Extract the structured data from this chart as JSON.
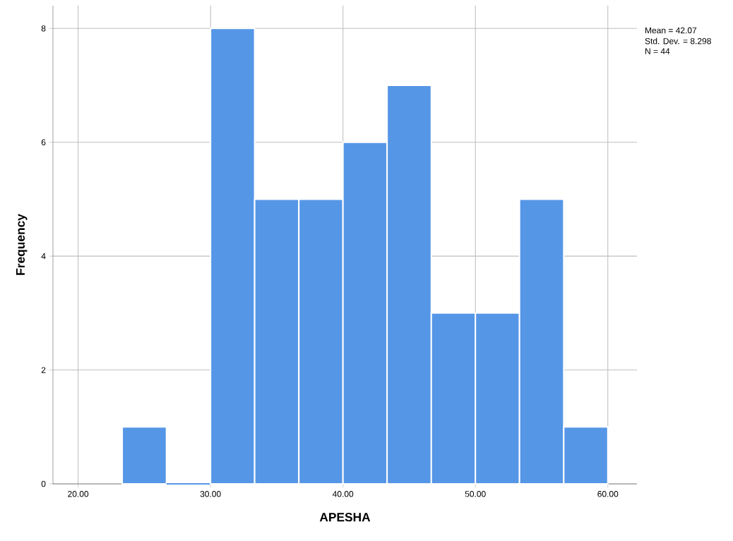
{
  "chart_data": {
    "type": "histogram",
    "xlabel": "APESHA",
    "ylabel": "Frequency",
    "bins": [
      23.33,
      26.67,
      30,
      33.33,
      36.67,
      40,
      43.33,
      46.67,
      50,
      53.33,
      56.67,
      60
    ],
    "values": [
      1,
      0,
      8,
      5,
      5,
      6,
      7,
      3,
      3,
      5,
      1
    ],
    "color": "#5596e6",
    "xlim": [
      18.1,
      62.2
    ],
    "ylim": [
      0,
      8.4
    ],
    "xticks": [
      {
        "value": 20,
        "label": "20.00"
      },
      {
        "value": 30,
        "label": "30.00"
      },
      {
        "value": 40,
        "label": "40.00"
      },
      {
        "value": 50,
        "label": "50.00"
      },
      {
        "value": 60,
        "label": "60.00"
      }
    ],
    "yticks": [
      0,
      2,
      4,
      6,
      8
    ],
    "grid": true,
    "annotations": [
      "Mean = 42.07",
      "Std. Dev. = 8.298",
      "N = 44"
    ]
  }
}
